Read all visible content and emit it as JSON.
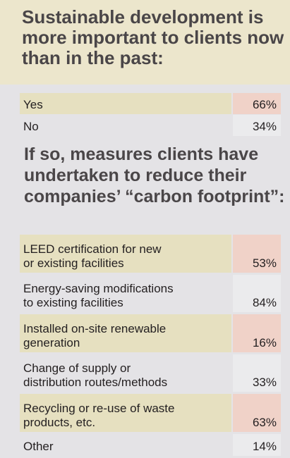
{
  "title": "Sustainable development is more important to clients now than in the past:",
  "subtitle": "If so, measures clients have undertaken to reduce their companies’ “carbon footprint”:",
  "chart_data": [
    {
      "type": "table",
      "title": "Sustainable development is more important to clients now than in the past:",
      "categories": [
        "Yes",
        "No"
      ],
      "values": [
        66,
        34
      ],
      "labels": [
        "66%",
        "34%"
      ]
    },
    {
      "type": "table",
      "title": "If so, measures clients have undertaken to reduce their companies’ “carbon footprint”:",
      "categories": [
        "LEED certification for new or existing facilities",
        "Energy-saving modifications to existing facilities",
        "Installed on-site renewable generation",
        "Change of supply or distribution routes/methods",
        "Recycling or re-use of waste products, etc.",
        "Other"
      ],
      "values": [
        53,
        84,
        16,
        33,
        63,
        14
      ],
      "labels": [
        "53%",
        "84%",
        "16%",
        "33%",
        "63%",
        "14%"
      ]
    }
  ],
  "rows1": [
    {
      "label": "Yes",
      "value": "66%"
    },
    {
      "label": "No",
      "value": "34%"
    }
  ],
  "rows2": [
    {
      "label": "LEED certification for new\nor existing facilities",
      "value": "53%"
    },
    {
      "label": "Energy-saving modifications\nto existing facilities",
      "value": "84%"
    },
    {
      "label": "Installed on-site renewable\ngeneration",
      "value": "16%"
    },
    {
      "label": "Change of supply or\ndistribution routes/methods",
      "value": "33%"
    },
    {
      "label": "Recycling or re-use of waste\nproducts, etc.",
      "value": "63%"
    },
    {
      "label": "Other",
      "value": "14%"
    }
  ],
  "colors": {
    "shade_label": "#e6e0c0",
    "shade_value": "#f0d2c8",
    "header_bg": "#ece6cc"
  }
}
